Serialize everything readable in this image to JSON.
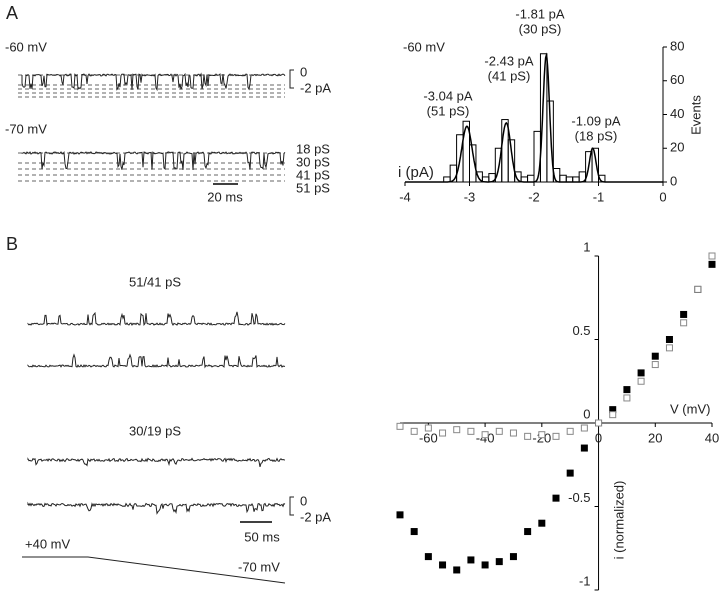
{
  "panel_a": {
    "label": "A",
    "top_voltage": "-60 mV",
    "bottom_voltage": "-70 mV",
    "current_scale": [
      "0",
      "-2 pA"
    ],
    "conductances": [
      "18 pS",
      "30 pS",
      "41 pS",
      "51 pS"
    ],
    "time_scale": "20 ms"
  },
  "panel_b": {
    "label": "B",
    "group1": "51/41 pS",
    "group2": "30/19 pS",
    "current_scale": [
      "0",
      "-2 pA"
    ],
    "time_scale": "50 ms",
    "ramp_start": "+40 mV",
    "ramp_end": "-70 mV"
  },
  "chart_data": [
    {
      "type": "histogram",
      "xlabel": "i (pA)",
      "ylabel": "Events",
      "annotation": "-60 mV",
      "y_axis_position": "right",
      "color": "#000",
      "bins": [
        -3.4,
        -3.3,
        -3.2,
        -3.1,
        -3.0,
        -2.9,
        -2.8,
        -2.7,
        -2.6,
        -2.5,
        -2.4,
        -2.3,
        -2.2,
        -2.1,
        -2.0,
        -1.9,
        -1.8,
        -1.7,
        -1.6,
        -1.5,
        -1.4,
        -1.3,
        -1.2,
        -1.1,
        -1.0,
        -0.9
      ],
      "values": [
        3,
        10,
        28,
        36,
        22,
        6,
        3,
        5,
        20,
        37,
        25,
        6,
        3,
        4,
        30,
        76,
        48,
        8,
        4,
        3,
        3,
        6,
        18,
        20,
        4
      ],
      "fit": {
        "means": [
          -3.04,
          -2.43,
          -1.81,
          -1.09
        ],
        "heights": [
          33,
          35,
          75,
          20
        ],
        "sigmas": [
          0.08,
          0.07,
          0.05,
          0.05
        ]
      },
      "peak_labels": [
        [
          "-3.04 pA",
          "(51 pS)"
        ],
        [
          "-2.43 pA",
          "(41 pS)"
        ],
        [
          "-1.81 pA",
          "(30 pS)"
        ],
        [
          "-1.09 pA",
          "(18 pS)"
        ]
      ],
      "xlim": [
        -4,
        0
      ],
      "xticks": [
        -4,
        -3,
        -2,
        -1,
        0
      ],
      "ylim": [
        0,
        80
      ],
      "yticks": [
        0,
        20,
        40,
        60,
        80
      ]
    },
    {
      "type": "scatter",
      "xlabel": "V (mV)",
      "ylabel": "i (normalized)",
      "axes_through_origin": true,
      "xlim": [
        -70,
        40
      ],
      "xticks": [
        -60,
        -40,
        -20,
        0,
        20,
        40
      ],
      "ylim": [
        -1,
        1
      ],
      "yticks": [
        -1,
        -0.5,
        0,
        0.5,
        1
      ],
      "x": [
        -70,
        -65,
        -60,
        -55,
        -50,
        -45,
        -40,
        -35,
        -30,
        -25,
        -20,
        -15,
        -10,
        -5,
        0,
        5,
        10,
        15,
        20,
        25,
        30,
        35,
        40
      ],
      "series": [
        {
          "color": "#000",
          "filled": true,
          "values": [
            -0.55,
            -0.65,
            -0.8,
            -0.85,
            -0.88,
            -0.82,
            -0.85,
            -0.83,
            -0.8,
            -0.65,
            -0.6,
            -0.45,
            -0.3,
            -0.15,
            0,
            0.08,
            0.2,
            0.3,
            0.4,
            0.5,
            0.65,
            0.8,
            0.95
          ]
        },
        {
          "color": "#888",
          "filled": false,
          "values": [
            -0.02,
            -0.05,
            -0.03,
            -0.06,
            -0.04,
            -0.05,
            -0.07,
            -0.05,
            -0.06,
            -0.08,
            -0.07,
            -0.08,
            -0.05,
            -0.03,
            0,
            0.05,
            0.15,
            0.25,
            0.35,
            0.45,
            0.6,
            0.8,
            1.0
          ]
        }
      ]
    }
  ]
}
